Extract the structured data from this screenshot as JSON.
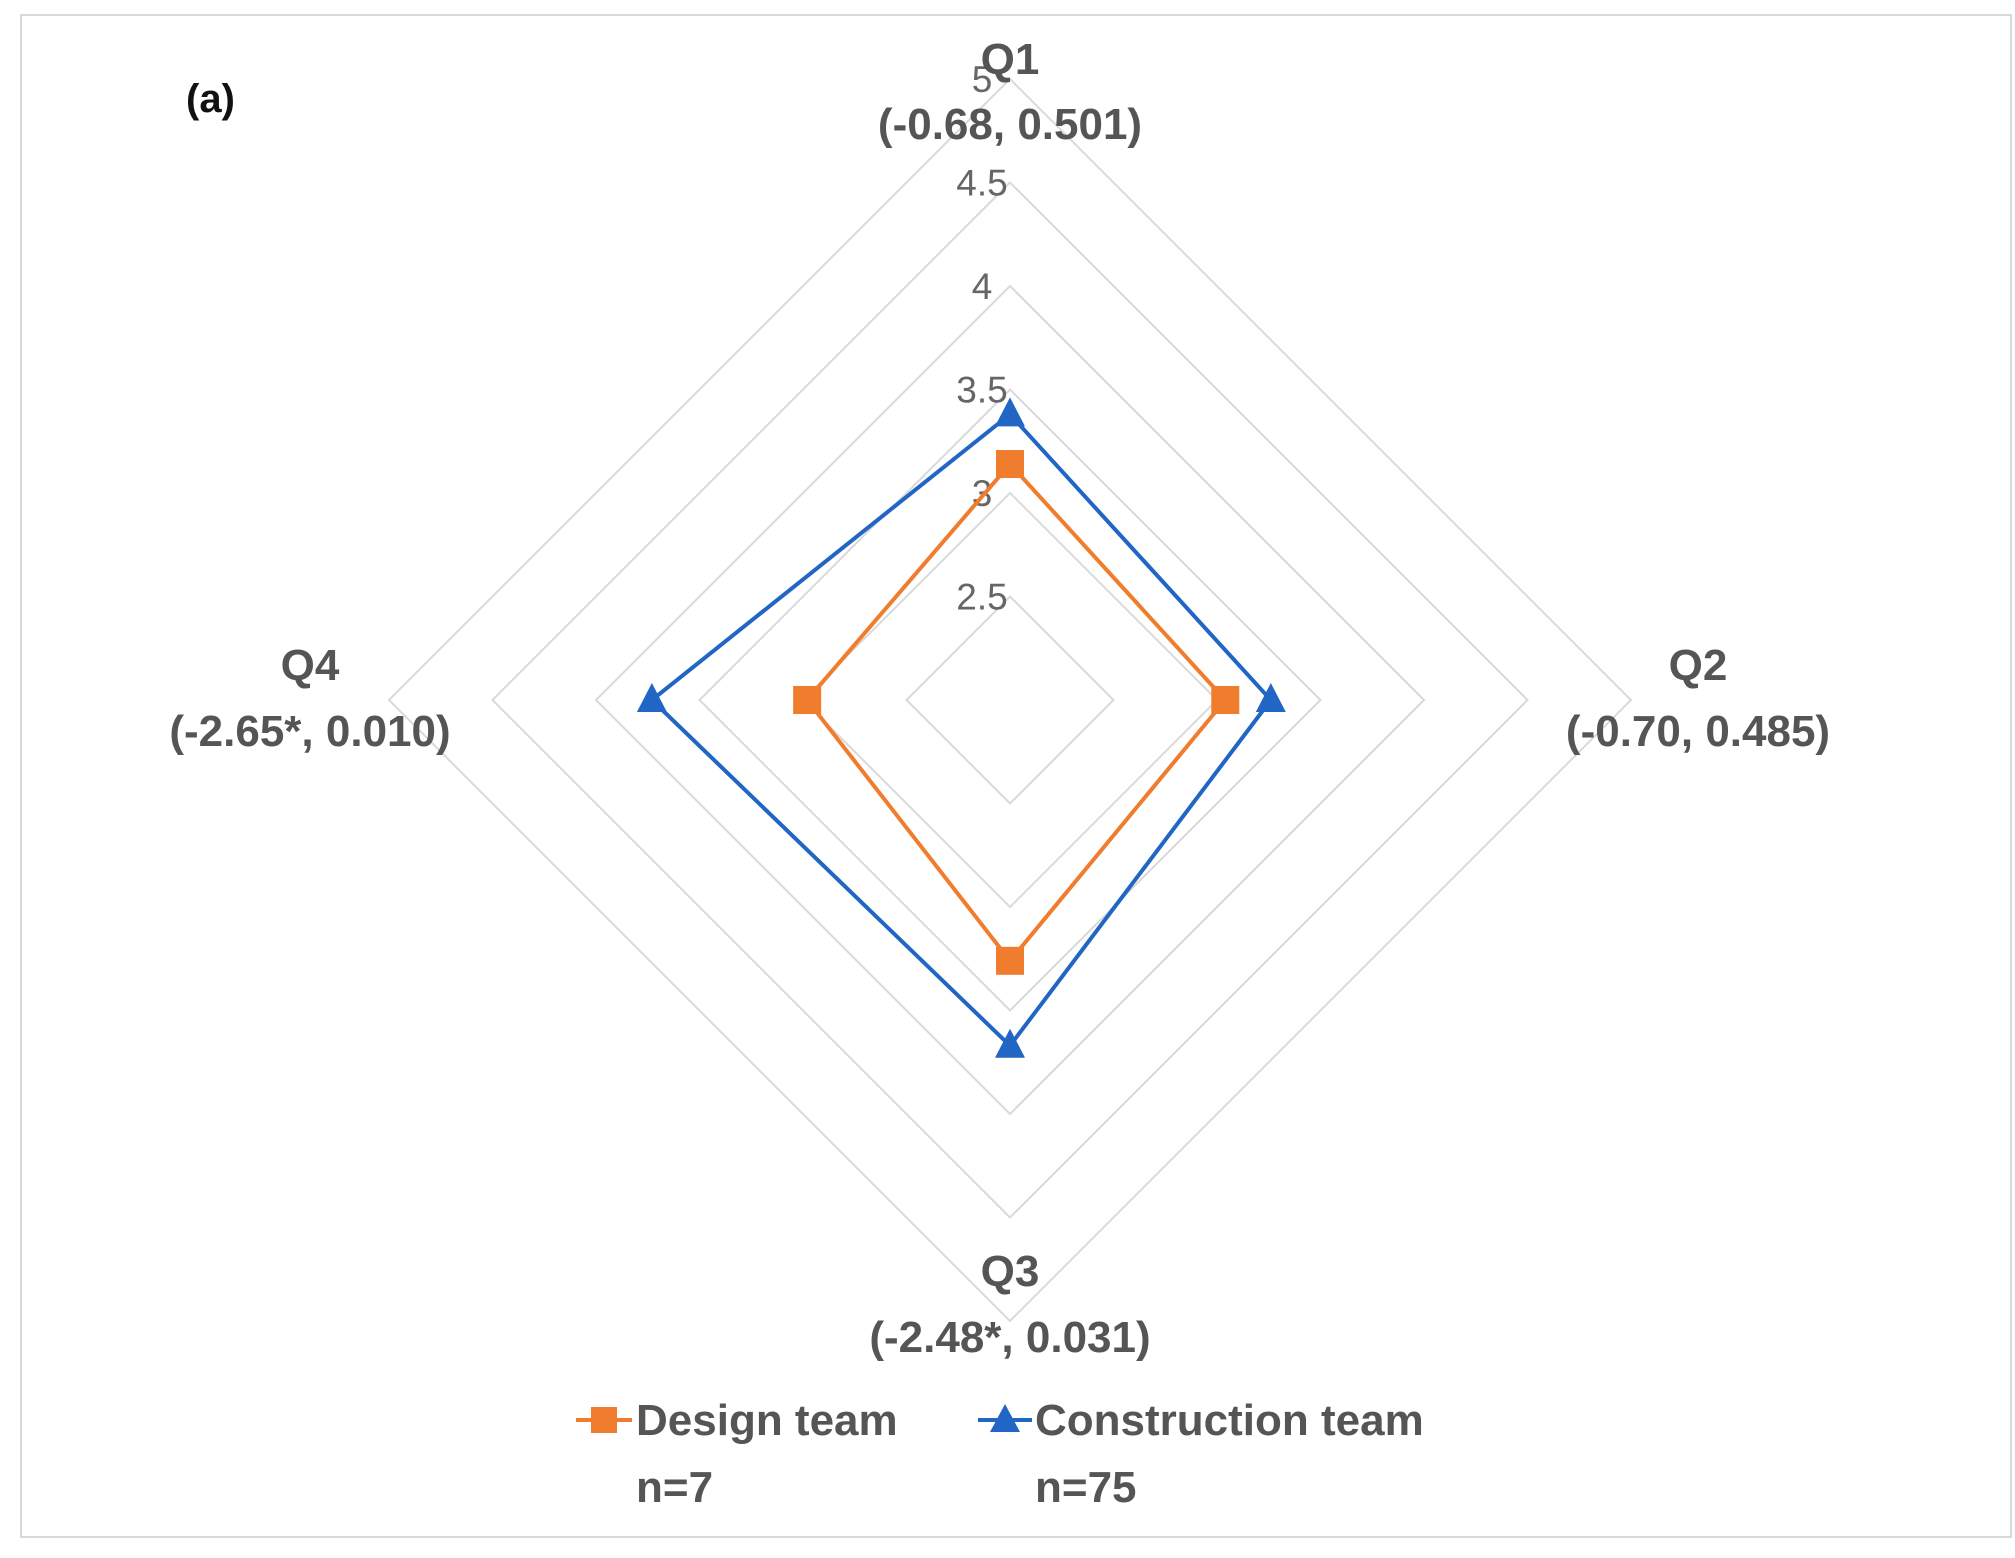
{
  "chart_data": {
    "type": "radar",
    "panel_label": "(a)",
    "axes": [
      {
        "name": "Q1",
        "stats": "(-0.68, 0.501)"
      },
      {
        "name": "Q2",
        "stats": "(-0.70, 0.485)"
      },
      {
        "name": "Q3",
        "stats": "(-2.48*, 0.031)"
      },
      {
        "name": "Q4",
        "stats": "(-2.65*, 0.010)"
      }
    ],
    "range": [
      2,
      5
    ],
    "ticks": [
      "2.5",
      "3",
      "3.5",
      "4",
      "4.5",
      "5"
    ],
    "tick_values": [
      2.5,
      3,
      3.5,
      4,
      4.5,
      5
    ],
    "series": [
      {
        "name": "Design team",
        "n_label": "n=7",
        "color": "#f07d2e",
        "marker": "square",
        "values": [
          3.14,
          3.04,
          3.26,
          2.98
        ]
      },
      {
        "name": "Construction team",
        "n_label": "n=75",
        "color": "#2166c4",
        "marker": "triangle",
        "values": [
          3.38,
          3.26,
          3.67,
          3.73
        ]
      }
    ],
    "gridline_color": "#d9d9d9",
    "legend_position": "bottom"
  }
}
